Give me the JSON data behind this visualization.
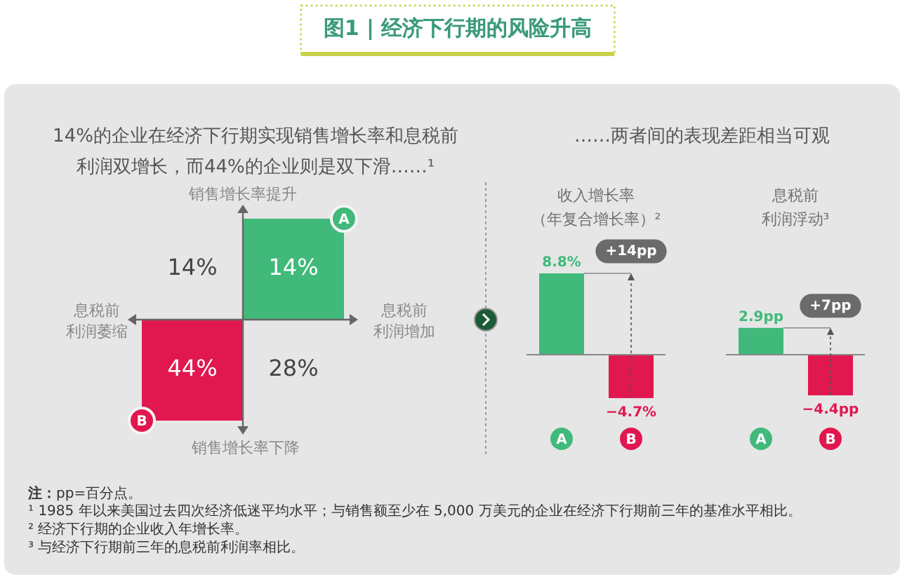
{
  "chart_data": [
    {
      "type": "other",
      "title": "图1 | 经济下行期的风险升高",
      "subtitle": "14%的企业在经济下行期实现销售增长率和息税前利润双增长，而44%的企业则是双下滑……¹",
      "categories": [
        "息税前利润萎缩",
        "息税前利润增加"
      ],
      "series": [
        {
          "name": "销售增长率提升",
          "values": [
            14,
            14
          ],
          "value_labels": [
            "14%",
            "14%"
          ],
          "colors": [
            null,
            "#40b97a"
          ]
        },
        {
          "name": "销售增长率下降",
          "values": [
            44,
            28
          ],
          "value_labels": [
            "44%",
            "28%"
          ],
          "colors": [
            "#e1174f",
            null
          ]
        }
      ],
      "annotations": [
        "A",
        "B"
      ]
    },
    {
      "type": "bar",
      "title": "收入增长率（年复合增长率）²",
      "subtitle": "……两者间的表现差距相当可观",
      "categories": [
        "A",
        "B"
      ],
      "values": [
        8.8,
        -4.7
      ],
      "colors": [
        "#40b97a",
        "#e1174f"
      ],
      "value_labels": [
        "8.8%",
        "−4.7%"
      ],
      "annotations": [
        "+14pp"
      ]
    },
    {
      "type": "bar",
      "title": "息税前利润浮动³",
      "categories": [
        "A",
        "B"
      ],
      "values": [
        2.9,
        -4.4
      ],
      "colors": [
        "#40b97a",
        "#e1174f"
      ],
      "value_labels": [
        "2.9pp",
        "−4.4pp"
      ],
      "annotations": [
        "+7pp",
        "注：pp=百分点。",
        "¹ 1985 年以来美国过去四次经济低迷平均水平；与销售额至少在 5,000 万美元的企业在经济下行期前三年的基准水平相比。",
        "² 经济下行期的企业收入年增长率。",
        "³ 与经济下行期前三年的息税前利润率相比。"
      ]
    }
  ]
}
